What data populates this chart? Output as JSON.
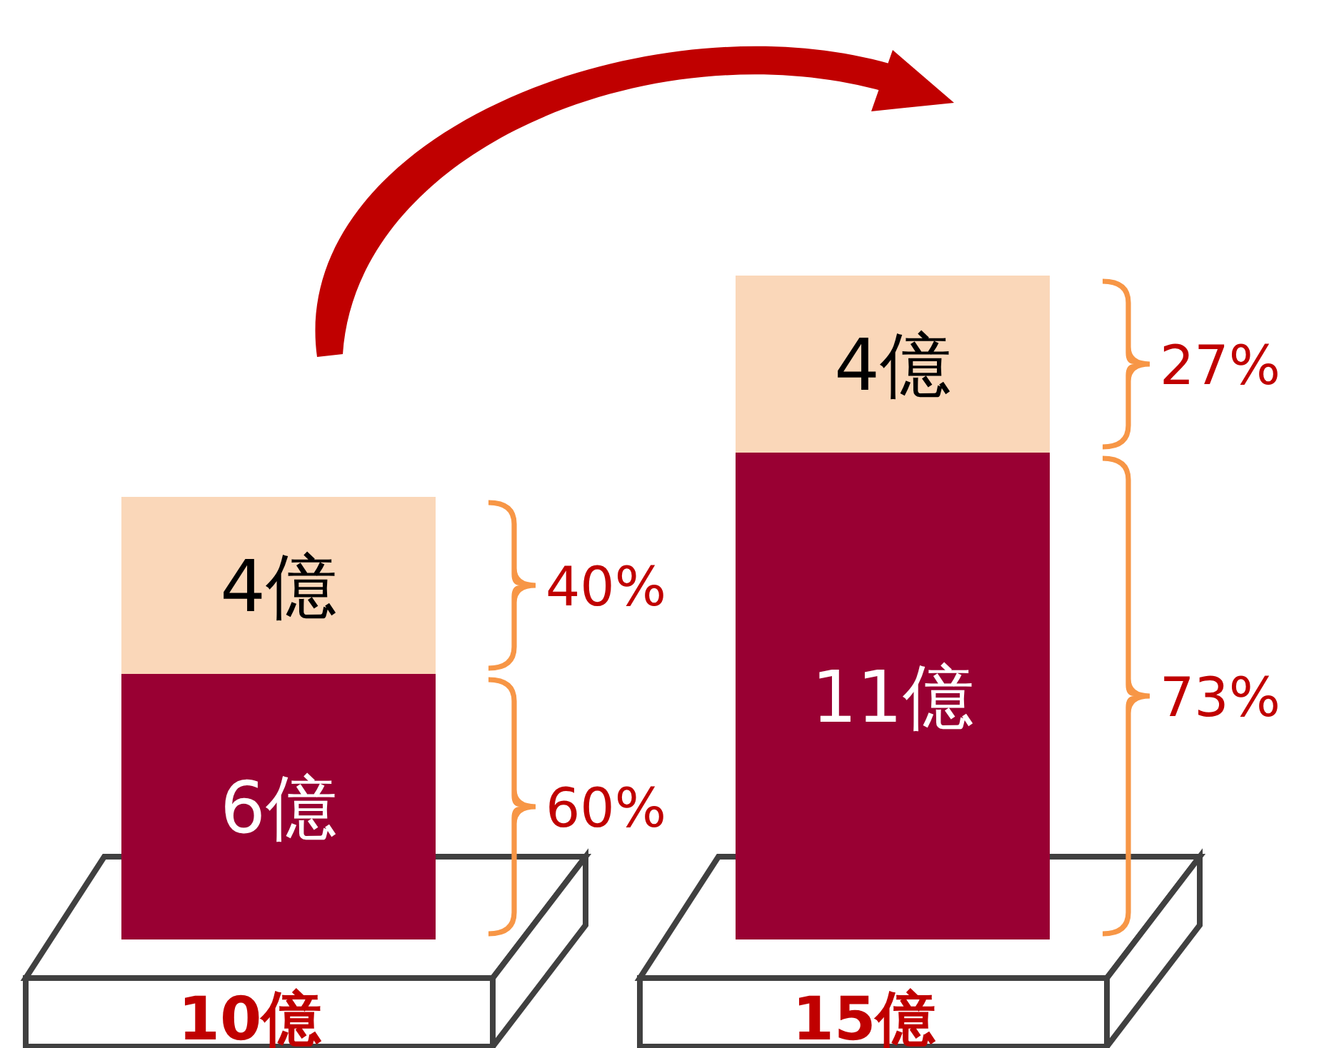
{
  "chart_data": {
    "type": "bar",
    "stacked": true,
    "categories": [
      null,
      null
    ],
    "series": [
      {
        "color": "#990033",
        "values": [
          6,
          11
        ],
        "value_labels": [
          "6億",
          "11億"
        ]
      },
      {
        "color": "#fad7b9",
        "values": [
          4,
          4
        ],
        "value_labels": [
          "4億",
          "4億"
        ]
      }
    ],
    "totals": [
      "10億",
      "15億"
    ],
    "annotations": [
      "60%",
      "40%",
      "73%",
      "27%"
    ]
  }
}
